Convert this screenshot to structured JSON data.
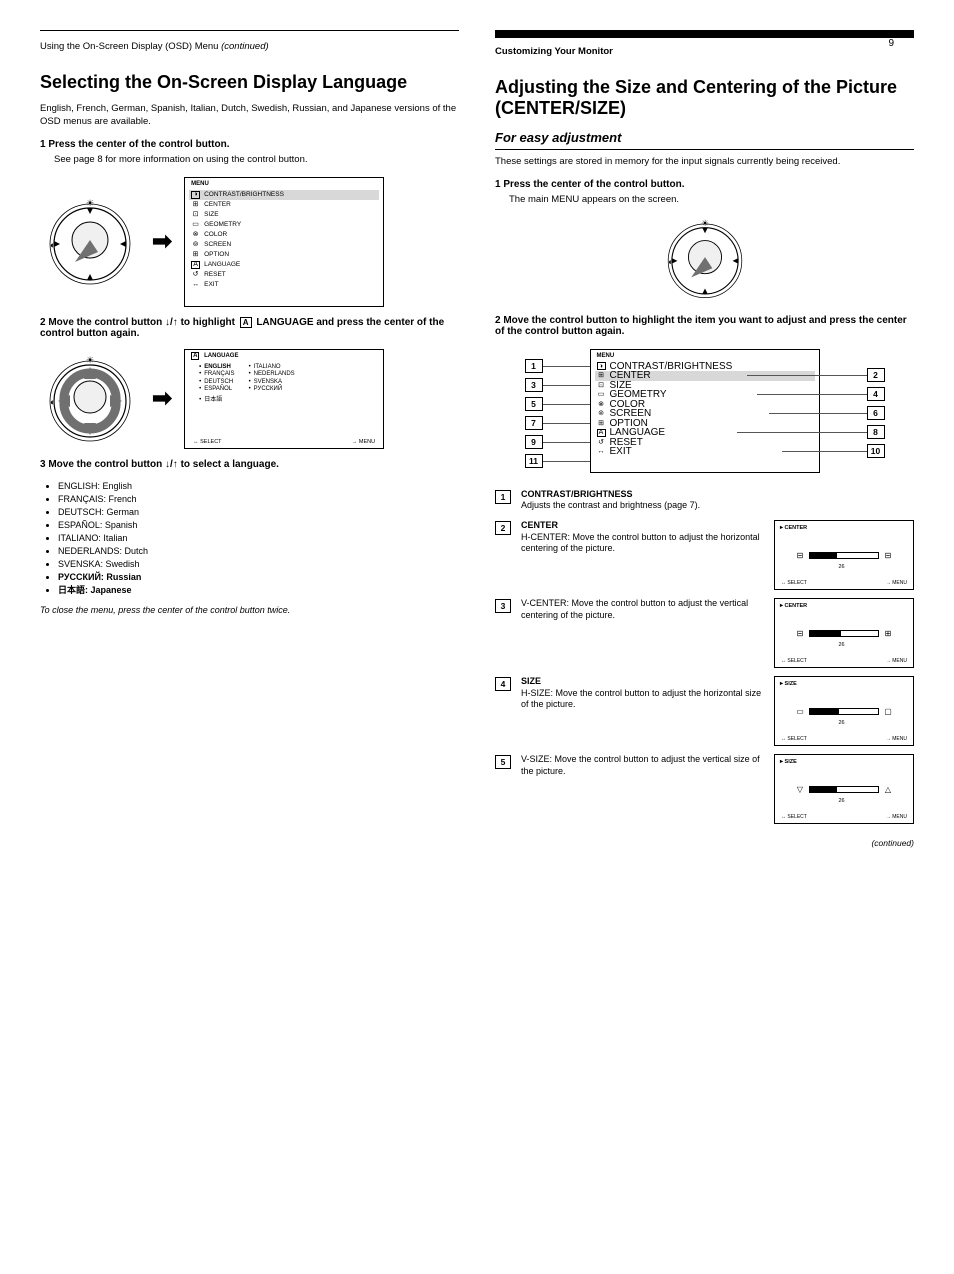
{
  "page_number": "9",
  "left": {
    "rule": true,
    "heading_prefix": "Using the On-Screen Display (OSD) Menu",
    "heading_suffix_italic": "(continued)",
    "title": "Selecting the On-Screen Display Language",
    "intro": "English, French, German, Spanish, Italian, Dutch, Swedish, Russian, and Japanese versions of the OSD menus are available.",
    "step1_label": "1   Press the center of the control button.",
    "step1_body": "See page 8 for more information on using the control button.",
    "step2": {
      "label_parts": [
        "2   Move the control button ",
        "↓/↑",
        " to highlight ",
        " LANGUAGE and press the center of the control button again."
      ]
    },
    "step3": {
      "label_parts": [
        "3   Move the control button ",
        "↓/↑",
        " to select a language."
      ]
    },
    "lang_icon_inline": "A",
    "osd_main_title": "MENU",
    "osd_items": [
      {
        "icon": "◑",
        "label": "CONTRAST/BRIGHTNESS",
        "icon_box": true
      },
      {
        "icon": "⊞",
        "label": "CENTER"
      },
      {
        "icon": "⊡",
        "label": "SIZE"
      },
      {
        "icon": "▭",
        "label": "GEOMETRY"
      },
      {
        "icon": "⊗",
        "label": "COLOR"
      },
      {
        "icon": "⊚",
        "label": "SCREEN"
      },
      {
        "icon": "⊞",
        "label": "OPTION"
      },
      {
        "icon": "A",
        "label": "LANGUAGE",
        "icon_box": true
      },
      {
        "icon": "↺",
        "label": "RESET"
      },
      {
        "icon": "↔",
        "label": "EXIT"
      }
    ],
    "lang_menu_title": "LANGUAGE",
    "lang_left": [
      "ENGLISH",
      "FRANÇAIS",
      "DEUTSCH",
      "ESPAÑOL",
      "日本語"
    ],
    "lang_right": [
      "ITALIANO",
      "NEDERLANDS",
      "SVENSKA",
      "РУССКИЙ"
    ],
    "lang_footer_left": "↔ SELECT",
    "lang_footer_right": "→ MENU",
    "lang_list": [
      {
        "text": "ENGLISH: English",
        "bold": false
      },
      {
        "text": "FRANÇAIS: French",
        "bold": false
      },
      {
        "text": "DEUTSCH: German",
        "bold": false
      },
      {
        "text": "ESPAÑOL: Spanish",
        "bold": false
      },
      {
        "text": "ITALIANO: Italian",
        "bold": false
      },
      {
        "text": "NEDERLANDS: Dutch",
        "bold": false
      },
      {
        "text": "SVENSKA: Swedish",
        "bold": false
      },
      {
        "text": "РУССКИЙ: Russian",
        "bold": true
      },
      {
        "text": "日本語: Japanese",
        "bold": true
      }
    ],
    "close_note": "To close the menu, press the center of the control button twice."
  },
  "right": {
    "black_bar": true,
    "section_pre": "Customizing Your Monitor",
    "title": "Adjusting the Size and Centering of the Picture (CENTER/SIZE)",
    "sub": "For easy adjustment",
    "intro": "These settings are stored in memory for the input signals currently being received.",
    "step1_label": "1   Press the center of the control button.",
    "step1_body": "The main MENU appears on the screen.",
    "step2_label": "2   Move the control button to highlight the item you want to adjust and press the center of the control button again.",
    "osd_items": [
      {
        "icon": "◑",
        "label": "CONTRAST/BRIGHTNESS",
        "icon_box": true
      },
      {
        "icon": "⊞",
        "label": "CENTER"
      },
      {
        "icon": "⊡",
        "label": "SIZE"
      },
      {
        "icon": "▭",
        "label": "GEOMETRY"
      },
      {
        "icon": "⊗",
        "label": "COLOR"
      },
      {
        "icon": "⊚",
        "label": "SCREEN"
      },
      {
        "icon": "⊞",
        "label": "OPTION"
      },
      {
        "icon": "A",
        "label": "LANGUAGE",
        "icon_box": true
      },
      {
        "icon": "↺",
        "label": "RESET"
      },
      {
        "icon": "↔",
        "label": "EXIT"
      }
    ],
    "features": [
      {
        "n": "1",
        "title": "CONTRAST/BRIGHTNESS",
        "desc": "Adjusts the contrast and brightness (page 7)."
      },
      {
        "n": "2",
        "title": "CENTER",
        "desc": "H-CENTER: Move the control button to adjust the horizontal centering of the picture.",
        "thumb": {
          "title": "CENTER",
          "left": "⊟",
          "right": "⊟",
          "val": "26",
          "fill": 0.4,
          "footL": "↔ SELECT",
          "footR": "→ MENU"
        }
      },
      {
        "n": "3",
        "title": "",
        "desc": "V-CENTER: Move the control button to adjust the vertical centering of the picture.",
        "thumb": {
          "title": "CENTER",
          "left": "⊟",
          "right": "⊞",
          "val": "26",
          "fill": 0.45,
          "footL": "↔ SELECT",
          "footR": "→ MENU"
        }
      },
      {
        "n": "4",
        "title": "SIZE",
        "desc": "H-SIZE: Move the control button to adjust the horizontal size of the picture.",
        "thumb": {
          "title": "SIZE",
          "left": "▭",
          "right": "▢",
          "val": "26",
          "fill": 0.42,
          "footL": "↔ SELECT",
          "footR": "→ MENU"
        }
      },
      {
        "n": "5",
        "title": "",
        "desc": "V-SIZE: Move the control button to adjust the vertical size of the picture.",
        "thumb": {
          "title": "SIZE",
          "left": "▽",
          "right": "△",
          "val": "26",
          "fill": 0.4,
          "footL": "↔ SELECT",
          "footR": "→ MENU"
        }
      }
    ],
    "callout_numbers": [
      "1",
      "2",
      "3",
      "4",
      "5",
      "6",
      "7",
      "8",
      "9",
      "10",
      "11"
    ],
    "continued": "(continued)",
    "footer_left": "→ SELECT",
    "footer_right": "→ MENU"
  },
  "style": {
    "bg": "#ffffff",
    "text": "#000000",
    "sel_row": "#d8d8d8",
    "line": "#555555"
  }
}
